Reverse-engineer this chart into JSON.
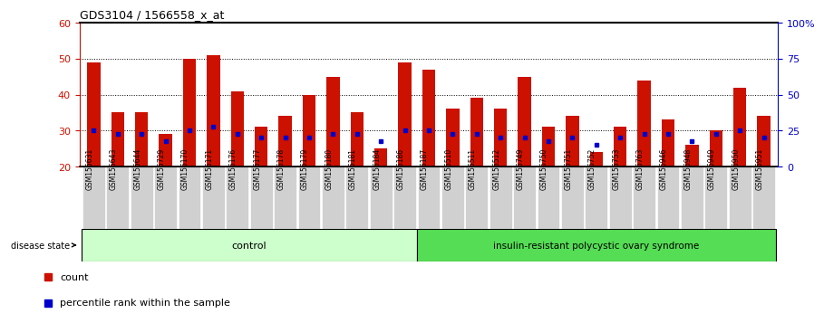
{
  "title": "GDS3104 / 1566558_x_at",
  "samples": [
    "GSM155631",
    "GSM155643",
    "GSM155644",
    "GSM155729",
    "GSM156170",
    "GSM156171",
    "GSM156176",
    "GSM156177",
    "GSM156178",
    "GSM156179",
    "GSM156180",
    "GSM156181",
    "GSM156184",
    "GSM156186",
    "GSM156187",
    "GSM156510",
    "GSM156511",
    "GSM156512",
    "GSM156749",
    "GSM156750",
    "GSM156751",
    "GSM156752",
    "GSM156753",
    "GSM156763",
    "GSM156946",
    "GSM156948",
    "GSM156949",
    "GSM156950",
    "GSM156951"
  ],
  "counts": [
    49,
    35,
    35,
    29,
    50,
    51,
    41,
    31,
    34,
    40,
    45,
    35,
    25,
    49,
    47,
    36,
    39,
    36,
    45,
    31,
    34,
    24,
    31,
    44,
    33,
    26,
    30,
    42,
    34
  ],
  "percentile_ranks": [
    30,
    29,
    29,
    27,
    30,
    31,
    29,
    28,
    28,
    28,
    29,
    29,
    27,
    30,
    30,
    29,
    29,
    28,
    28,
    27,
    28,
    26,
    28,
    29,
    29,
    27,
    29,
    30,
    28
  ],
  "control_count": 14,
  "disease_count": 15,
  "control_label": "control",
  "disease_label": "insulin-resistant polycystic ovary syndrome",
  "disease_state_label": "disease state",
  "ylim_left": [
    20,
    60
  ],
  "yticks_left": [
    20,
    30,
    40,
    50,
    60
  ],
  "ytick_labels_right": [
    "0",
    "25",
    "50",
    "75",
    "100%"
  ],
  "bar_color": "#cc1100",
  "dot_color": "#0000cc",
  "bg_color_control": "#ccffcc",
  "bg_color_disease": "#55dd55",
  "bar_bottom": 20,
  "legend_count_label": "count",
  "legend_pct_label": "percentile rank within the sample",
  "grid_dotted_values": [
    30,
    40,
    50
  ],
  "bar_width": 0.55,
  "left_color": "#cc1100",
  "right_color": "#0000cc",
  "tick_label_bg": "#d0d0d0",
  "tick_label_sep_color": "white"
}
